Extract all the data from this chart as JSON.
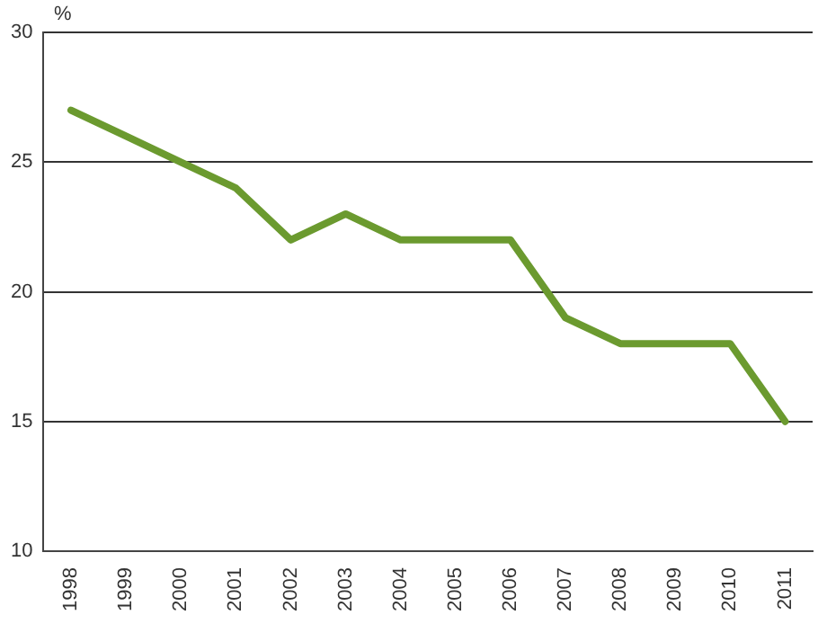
{
  "chart_data": {
    "type": "line",
    "ylabel": "%",
    "categories": [
      "1998",
      "1999",
      "2000",
      "2001",
      "2002",
      "2003",
      "2004",
      "2005",
      "2006",
      "2007",
      "2008",
      "2009",
      "2010",
      "2011"
    ],
    "series": [
      {
        "color": "#6b9a2f",
        "values": [
          27,
          26,
          25,
          24,
          22,
          23,
          22,
          22,
          22,
          19,
          18,
          18,
          18,
          15
        ]
      }
    ],
    "ylim": [
      10,
      30
    ],
    "yticks": [
      10,
      15,
      20,
      25,
      30
    ],
    "grid": "y",
    "legend": false,
    "marker": "none",
    "line_style": "solid"
  }
}
